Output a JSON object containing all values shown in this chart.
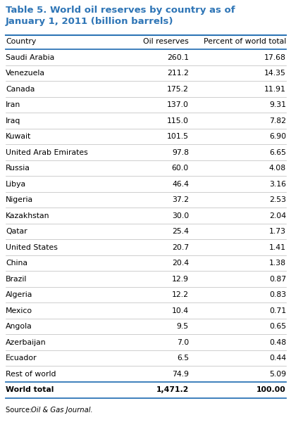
{
  "title_line1": "Table 5. World oil reserves by country as of",
  "title_line2": "January 1, 2011 (billion barrels)",
  "title_color": "#2E75B6",
  "col_headers": [
    "Country",
    "Oil reserves",
    "Percent of world total"
  ],
  "rows": [
    [
      "Saudi Arabia",
      "260.1",
      "17.68"
    ],
    [
      "Venezuela",
      "211.2",
      "14.35"
    ],
    [
      "Canada",
      "175.2",
      "11.91"
    ],
    [
      "Iran",
      "137.0",
      "9.31"
    ],
    [
      "Iraq",
      "115.0",
      "7.82"
    ],
    [
      "Kuwait",
      "101.5",
      "6.90"
    ],
    [
      "United Arab Emirates",
      "97.8",
      "6.65"
    ],
    [
      "Russia",
      "60.0",
      "4.08"
    ],
    [
      "Libya",
      "46.4",
      "3.16"
    ],
    [
      "Nigeria",
      "37.2",
      "2.53"
    ],
    [
      "Kazakhstan",
      "30.0",
      "2.04"
    ],
    [
      "Qatar",
      "25.4",
      "1.73"
    ],
    [
      "United States",
      "20.7",
      "1.41"
    ],
    [
      "China",
      "20.4",
      "1.38"
    ],
    [
      "Brazil",
      "12.9",
      "0.87"
    ],
    [
      "Algeria",
      "12.2",
      "0.83"
    ],
    [
      "Mexico",
      "10.4",
      "0.71"
    ],
    [
      "Angola",
      "9.5",
      "0.65"
    ],
    [
      "Azerbaijan",
      "7.0",
      "0.48"
    ],
    [
      "Ecuador",
      "6.5",
      "0.44"
    ],
    [
      "Rest of world",
      "74.9",
      "5.09"
    ]
  ],
  "total_row": [
    "World total",
    "1,471.2",
    "100.00"
  ],
  "source_prefix": "Source: ",
  "source_italic": "Oil & Gas Journal.",
  "header_line_color": "#2E75B6",
  "total_line_color": "#2E75B6",
  "row_line_color": "#BBBBBB",
  "bg_color": "#FFFFFF",
  "title_font_size": 9.5,
  "header_font_size": 7.8,
  "data_font_size": 7.8,
  "source_font_size": 7.2
}
